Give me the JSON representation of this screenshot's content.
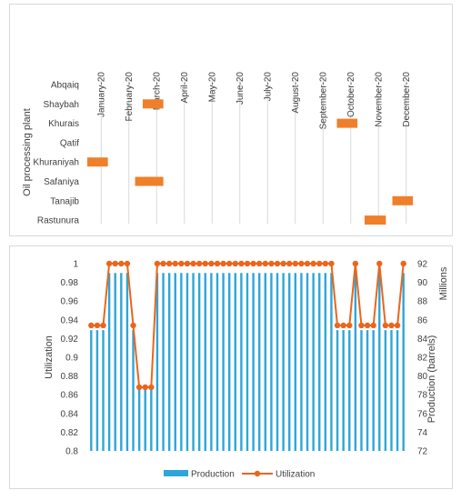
{
  "chart_data": [
    {
      "type": "gantt",
      "ylabel": "Oil processing plant",
      "months": [
        "January-20",
        "February-20",
        "March-20",
        "April-20",
        "May-20",
        "June-20",
        "July-20",
        "August-20",
        "September-20",
        "October-20",
        "November-20",
        "December-20"
      ],
      "plants": [
        "Abqaiq",
        "Shaybah",
        "Khurais",
        "Qatif",
        "Khuraniyah",
        "Safaniya",
        "Tanajib",
        "Rastunura"
      ],
      "outages": [
        {
          "plant": "Shaybah",
          "start": "2020-03-01",
          "end": "2020-03-24"
        },
        {
          "plant": "Khurais",
          "start": "2020-10-01",
          "end": "2020-10-24"
        },
        {
          "plant": "Khuraniyah",
          "start": "2020-01-01",
          "end": "2020-01-24"
        },
        {
          "plant": "Safaniya",
          "start": "2020-02-22",
          "end": "2020-03-24"
        },
        {
          "plant": "Tanajib",
          "start": "2020-12-01",
          "end": "2020-12-24"
        },
        {
          "plant": "Rastunura",
          "start": "2020-11-01",
          "end": "2020-11-24"
        }
      ],
      "bar_color": "#f07f2a",
      "grid_color": "#d9d9d9"
    },
    {
      "type": "bar+line",
      "ylabel": "Utilization",
      "y2label": "Production (barrels)",
      "y2unit": "Millions",
      "ylim": [
        0.8,
        1.0
      ],
      "y2lim": [
        72,
        92
      ],
      "yticks": [
        "0.8",
        "0.82",
        "0.84",
        "0.86",
        "0.88",
        "0.9",
        "0.92",
        "0.94",
        "0.96",
        "0.98",
        "1"
      ],
      "y2ticks": [
        "72",
        "74",
        "76",
        "78",
        "80",
        "82",
        "84",
        "86",
        "88",
        "90",
        "92"
      ],
      "series": [
        {
          "name": "Production",
          "color": "#2ea6d9",
          "axis": "right",
          "values": [
            84.9,
            84.9,
            84.9,
            91.0,
            91.0,
            91.0,
            91.0,
            84.9,
            78.9,
            78.9,
            78.9,
            91.0,
            91.0,
            91.0,
            91.0,
            91.0,
            91.0,
            91.0,
            91.0,
            91.0,
            91.0,
            91.0,
            91.0,
            91.0,
            91.0,
            91.0,
            91.0,
            91.0,
            91.0,
            91.0,
            91.0,
            91.0,
            91.0,
            91.0,
            91.0,
            91.0,
            91.0,
            91.0,
            91.0,
            91.0,
            91.0,
            84.9,
            84.9,
            84.9,
            91.0,
            84.9,
            84.9,
            84.9,
            91.0,
            84.9,
            84.9,
            84.9,
            91.0
          ]
        },
        {
          "name": "Utilization",
          "color": "#e9661d",
          "axis": "left",
          "values": [
            0.934,
            0.934,
            0.934,
            1.0,
            1.0,
            1.0,
            1.0,
            0.934,
            0.868,
            0.868,
            0.868,
            1.0,
            1.0,
            1.0,
            1.0,
            1.0,
            1.0,
            1.0,
            1.0,
            1.0,
            1.0,
            1.0,
            1.0,
            1.0,
            1.0,
            1.0,
            1.0,
            1.0,
            1.0,
            1.0,
            1.0,
            1.0,
            1.0,
            1.0,
            1.0,
            1.0,
            1.0,
            1.0,
            1.0,
            1.0,
            1.0,
            0.934,
            0.934,
            0.934,
            1.0,
            0.934,
            0.934,
            0.934,
            1.0,
            0.934,
            0.934,
            0.934,
            1.0
          ]
        }
      ],
      "legend": "bottom"
    }
  ]
}
